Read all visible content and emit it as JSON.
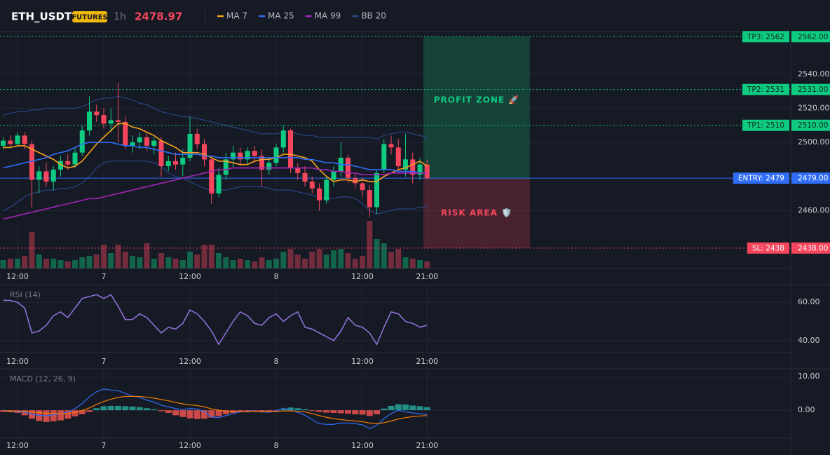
{
  "header": {
    "symbol": "ETH_USDT",
    "badge": "FUTURES",
    "interval": "1h",
    "price": "2478.97"
  },
  "chart_data": [
    {
      "type": "candlestick",
      "categories": [
        null,
        null,
        "12:00",
        null,
        null,
        null,
        null,
        null,
        null,
        null,
        null,
        null,
        null,
        null,
        "7",
        null,
        null,
        null,
        null,
        null,
        null,
        null,
        null,
        null,
        null,
        null,
        "12:00",
        null,
        null,
        null,
        null,
        null,
        null,
        null,
        null,
        null,
        null,
        null,
        "8",
        null,
        null,
        null,
        null,
        null,
        null,
        null,
        null,
        null,
        null,
        null,
        "12:00",
        null,
        null,
        null,
        null,
        null,
        null,
        null,
        null,
        "21:00"
      ],
      "open": [
        2498,
        2501,
        2499,
        2504,
        2499,
        2478,
        2483,
        2477,
        2484,
        2489,
        2487,
        2494,
        2507,
        2518,
        2516,
        2511,
        2513,
        2512,
        2498,
        2500,
        2503,
        2498,
        2501,
        2486,
        2489,
        2487,
        2491,
        2505,
        2499,
        2490,
        2470,
        2481,
        2490,
        2494,
        2490,
        2495,
        2492,
        2484,
        2488,
        2497,
        2507,
        2485,
        2482,
        2477,
        2473,
        2466,
        2478,
        2483,
        2491,
        2479,
        2476,
        2472,
        2462,
        2484,
        2499,
        2497,
        2484,
        2490,
        2481,
        2487
      ],
      "high": [
        2503,
        2504,
        2506,
        2506,
        2501,
        2486,
        2488,
        2486,
        2492,
        2493,
        2497,
        2510,
        2527,
        2522,
        2520,
        2520,
        2535,
        2515,
        2504,
        2506,
        2506,
        2503,
        2503,
        2492,
        2494,
        2496,
        2515,
        2508,
        2502,
        2492,
        2485,
        2494,
        2498,
        2497,
        2497,
        2498,
        2496,
        2491,
        2499,
        2510,
        2508,
        2488,
        2486,
        2480,
        2476,
        2480,
        2486,
        2500,
        2493,
        2482,
        2479,
        2475,
        2484,
        2502,
        2504,
        2502,
        2505,
        2494,
        2491,
        2490
      ],
      "low": [
        2496,
        2497,
        2498,
        2496,
        2462,
        2470,
        2474,
        2472,
        2480,
        2484,
        2485,
        2492,
        2504,
        2512,
        2508,
        2506,
        2500,
        2496,
        2494,
        2496,
        2495,
        2493,
        2480,
        2483,
        2484,
        2480,
        2489,
        2496,
        2486,
        2464,
        2468,
        2478,
        2485,
        2486,
        2487,
        2488,
        2474,
        2481,
        2486,
        2494,
        2482,
        2478,
        2474,
        2470,
        2460,
        2464,
        2474,
        2480,
        2476,
        2473,
        2468,
        2456,
        2458,
        2482,
        2493,
        2484,
        2480,
        2476,
        2478,
        2478
      ],
      "close": [
        2501,
        2499,
        2504,
        2499,
        2478,
        2483,
        2477,
        2484,
        2489,
        2487,
        2494,
        2507,
        2518,
        2516,
        2511,
        2513,
        2512,
        2498,
        2500,
        2503,
        2498,
        2501,
        2486,
        2489,
        2487,
        2491,
        2505,
        2499,
        2490,
        2470,
        2481,
        2490,
        2494,
        2490,
        2495,
        2492,
        2484,
        2488,
        2497,
        2507,
        2485,
        2482,
        2477,
        2473,
        2466,
        2478,
        2483,
        2491,
        2479,
        2476,
        2472,
        2462,
        2482,
        2499,
        2497,
        2486,
        2490,
        2481,
        2487,
        2479
      ],
      "volume": [
        12,
        14,
        14,
        18,
        52,
        20,
        14,
        14,
        12,
        10,
        12,
        16,
        18,
        20,
        34,
        22,
        34,
        24,
        18,
        16,
        36,
        14,
        22,
        16,
        14,
        12,
        24,
        20,
        34,
        34,
        22,
        16,
        12,
        14,
        12,
        10,
        16,
        12,
        14,
        24,
        28,
        20,
        14,
        24,
        28,
        20,
        26,
        28,
        22,
        14,
        18,
        68,
        42,
        36,
        24,
        28,
        16,
        14,
        12,
        10
      ],
      "up_color": "#0ecb81",
      "down_color": "#f6465d",
      "series": [
        {
          "name": "MA 7",
          "color": "#f7a21b",
          "values": [
            2497,
            2497,
            2498,
            2498,
            2496,
            2494,
            2492,
            2490,
            2487,
            2485,
            2486,
            2489,
            2494,
            2499,
            2503,
            2507,
            2511,
            2511,
            2509,
            2508,
            2506,
            2504,
            2501,
            2499,
            2497,
            2494,
            2494,
            2494,
            2493,
            2491,
            2489,
            2489,
            2488,
            2487,
            2487,
            2489,
            2490,
            2490,
            2491,
            2493,
            2493,
            2492,
            2491,
            2489,
            2484,
            2480,
            2477,
            2478,
            2478,
            2477,
            2478,
            2477,
            2477,
            2480,
            2482,
            2484,
            2485,
            2487,
            2489,
            2486
          ]
        },
        {
          "name": "MA 25",
          "color": "#2f6df6",
          "values": [
            2485,
            2486,
            2487,
            2488,
            2489,
            2490,
            2491,
            2493,
            2494,
            2495,
            2497,
            2499,
            2500,
            2500,
            2500,
            2500,
            2499,
            2498,
            2498,
            2497,
            2497,
            2496,
            2495,
            2494,
            2493,
            2493,
            2493,
            2493,
            2492,
            2492,
            2491,
            2491,
            2491,
            2491,
            2491,
            2491,
            2491,
            2491,
            2491,
            2491,
            2491,
            2491,
            2490,
            2490,
            2489,
            2488,
            2488,
            2487,
            2487,
            2486,
            2485,
            2484,
            2484,
            2484,
            2484,
            2483,
            2483,
            2483,
            2482,
            2482
          ]
        },
        {
          "name": "MA 99",
          "color": "#a425b8",
          "values": [
            2455,
            2456,
            2457,
            2458,
            2459,
            2460,
            2461,
            2462,
            2463,
            2464,
            2465,
            2466,
            2467,
            2467,
            2468,
            2469,
            2470,
            2471,
            2472,
            2473,
            2474,
            2475,
            2476,
            2477,
            2478,
            2479,
            2480,
            2481,
            2482,
            2483,
            2484,
            2484,
            2485,
            2485,
            2485,
            2485,
            2485,
            2485,
            2485,
            2485,
            2485,
            2485,
            2485,
            2485,
            2484,
            2484,
            2483,
            2483,
            2482,
            2482,
            2481,
            2481,
            2481,
            2481,
            2482,
            2482,
            2482,
            2482,
            2482,
            2482
          ]
        }
      ],
      "bands": {
        "name": "BB 20",
        "color": "#2a4384",
        "upper": [
          2516,
          2517,
          2518,
          2518,
          2519,
          2519,
          2520,
          2520,
          2520,
          2520,
          2520,
          2521,
          2523,
          2525,
          2526,
          2526,
          2527,
          2526,
          2525,
          2523,
          2522,
          2520,
          2518,
          2517,
          2516,
          2515,
          2515,
          2514,
          2513,
          2512,
          2511,
          2510,
          2509,
          2508,
          2507,
          2506,
          2505,
          2505,
          2505,
          2506,
          2506,
          2505,
          2504,
          2504,
          2503,
          2503,
          2503,
          2503,
          2503,
          2503,
          2503,
          2503,
          2502,
          2504,
          2505,
          2506,
          2506,
          2505,
          2504,
          2503
        ],
        "lower": [
          2460,
          2462,
          2465,
          2468,
          2470,
          2471,
          2472,
          2472,
          2473,
          2473,
          2474,
          2476,
          2480,
          2485,
          2488,
          2489,
          2489,
          2489,
          2489,
          2489,
          2489,
          2488,
          2486,
          2482,
          2480,
          2479,
          2477,
          2475,
          2473,
          2472,
          2472,
          2472,
          2473,
          2474,
          2474,
          2474,
          2474,
          2473,
          2472,
          2472,
          2472,
          2471,
          2470,
          2469,
          2468,
          2467,
          2467,
          2468,
          2468,
          2467,
          2464,
          2460,
          2458,
          2459,
          2460,
          2461,
          2461,
          2461,
          2462,
          2462
        ]
      },
      "levels": [
        {
          "label": "TP3: 2562",
          "value": 2562,
          "axis_label": "2562.00",
          "color": "#0ecb81",
          "text_color": "#10251c",
          "dashed": true
        },
        {
          "label": "TP2: 2531",
          "value": 2531,
          "axis_label": "2531.00",
          "color": "#0ecb81",
          "text_color": "#10251c",
          "dashed": true
        },
        {
          "label": "TP1: 2510",
          "value": 2510,
          "axis_label": "2510.00",
          "color": "#0ecb81",
          "text_color": "#10251c",
          "dashed": true
        },
        {
          "label": "ENTRY: 2479",
          "value": 2479,
          "axis_label": "2479.00",
          "color": "#2f6df6",
          "text_color": "#ffffff",
          "dashed": false
        },
        {
          "label": "SL: 2438",
          "value": 2438,
          "axis_label": "2438.00",
          "color": "#f6465d",
          "text_color": "#ffffff",
          "dashed": true
        }
      ],
      "zones": [
        {
          "label": "PROFIT ZONE 🚀",
          "from": 2479,
          "to": 2562,
          "color": "#0ecb81",
          "fill": "rgba(14,203,129,0.22)"
        },
        {
          "label": "RISK AREA 🛡️",
          "from": 2438,
          "to": 2479,
          "color": "#f6465d",
          "fill": "rgba(246,70,93,0.22)"
        }
      ],
      "ylim": [
        2426,
        2565
      ],
      "yticks": [
        {
          "value": 2540,
          "label": "2540.00"
        },
        {
          "value": 2520,
          "label": "2520.00"
        },
        {
          "value": 2500,
          "label": "2500.00"
        },
        {
          "value": 2460,
          "label": "2460.00"
        }
      ]
    },
    {
      "type": "line",
      "title": "RSI (14)",
      "color": "#8e6fd6",
      "categories": [
        null,
        null,
        "12:00",
        null,
        null,
        null,
        null,
        null,
        null,
        null,
        null,
        null,
        null,
        null,
        "7",
        null,
        null,
        null,
        null,
        null,
        null,
        null,
        null,
        null,
        null,
        null,
        "12:00",
        null,
        null,
        null,
        null,
        null,
        null,
        null,
        null,
        null,
        null,
        null,
        "8",
        null,
        null,
        null,
        null,
        null,
        null,
        null,
        null,
        null,
        null,
        null,
        "12:00",
        null,
        null,
        null,
        null,
        null,
        null,
        null,
        null,
        "21:00"
      ],
      "values": [
        61,
        61,
        60,
        57,
        44,
        45,
        48,
        53,
        55,
        52,
        57,
        62,
        63,
        64,
        62,
        64,
        58,
        51,
        51,
        54,
        52,
        48,
        44,
        47,
        46,
        49,
        56,
        54,
        50,
        45,
        38,
        44,
        50,
        55,
        53,
        49,
        48,
        52,
        54,
        50,
        53,
        55,
        47,
        46,
        44,
        42,
        40,
        45,
        52,
        48,
        47,
        44,
        38,
        47,
        55,
        54,
        50,
        49,
        47,
        48
      ],
      "ylim": [
        33.7,
        68.5
      ],
      "yticks": [
        {
          "value": 60,
          "label": "60.00"
        },
        {
          "value": 40,
          "label": "40.00"
        }
      ]
    },
    {
      "type": "macd",
      "title": "MACD (12, 26, 9)",
      "categories": [
        null,
        null,
        "12:00",
        null,
        null,
        null,
        null,
        null,
        null,
        null,
        null,
        null,
        null,
        null,
        "7",
        null,
        null,
        null,
        null,
        null,
        null,
        null,
        null,
        null,
        null,
        null,
        "12:00",
        null,
        null,
        null,
        null,
        null,
        null,
        null,
        null,
        null,
        null,
        null,
        "8",
        null,
        null,
        null,
        null,
        null,
        null,
        null,
        null,
        null,
        null,
        null,
        "12:00",
        null,
        null,
        null,
        null,
        null,
        null,
        null,
        null,
        "21:00"
      ],
      "histogram": [
        -0.5,
        -0.6,
        -0.8,
        -1.5,
        -2.5,
        -3.2,
        -3.5,
        -3.3,
        -3,
        -2.5,
        -1.8,
        -1.2,
        -0.5,
        0.6,
        1.2,
        1.3,
        1.3,
        1.2,
        1.1,
        0.9,
        0.6,
        0.3,
        -0.3,
        -0.8,
        -1.5,
        -2,
        -2.4,
        -2.6,
        -2.5,
        -2.2,
        -1.8,
        -1.2,
        -0.8,
        -0.5,
        -0.6,
        -0.5,
        -0.6,
        -0.5,
        -0.3,
        0.3,
        0.8,
        0.6,
        0.3,
        -0.2,
        -0.5,
        -0.7,
        -0.8,
        -0.9,
        -1,
        -1.2,
        -1.3,
        -1.7,
        -1.2,
        0.5,
        1.3,
        1.8,
        1.7,
        1.4,
        1.2,
        0.9
      ],
      "up_color": "#26a69a",
      "down_color": "#ef5350",
      "series": [
        {
          "color": "#2f6df6",
          "values": [
            0,
            -0.3,
            -0.5,
            -0.5,
            -1.2,
            -1.5,
            -1.6,
            -1.4,
            -1,
            -0.6,
            0.5,
            2,
            4,
            5.5,
            6.3,
            6,
            5.8,
            5,
            4.2,
            3.8,
            3,
            2.4,
            1.5,
            1,
            0.5,
            0.2,
            0.5,
            0.4,
            -0.4,
            -2,
            -2.2,
            -1.6,
            -1,
            -0.5,
            -0.3,
            -0.2,
            -0.5,
            -0.6,
            -0.2,
            0.6,
            0,
            -0.6,
            -1.5,
            -2.8,
            -4,
            -4.2,
            -4.2,
            -3.8,
            -3.8,
            -4,
            -4.3,
            -5.5,
            -4.5,
            -2.5,
            -1,
            0,
            -0.5,
            -0.8,
            -1,
            -1.3
          ]
        },
        {
          "color": "#f57c00",
          "values": [
            -0.2,
            -0.2,
            -0.3,
            -0.3,
            -0.5,
            -0.7,
            -0.9,
            -1,
            -1,
            -0.9,
            -0.6,
            -0.1,
            0.7,
            1.7,
            2.6,
            3.3,
            3.8,
            4.1,
            4.1,
            4.1,
            3.9,
            3.6,
            3.2,
            2.8,
            2.3,
            1.9,
            1.6,
            1.4,
            1,
            0.4,
            0,
            -0.3,
            -0.4,
            -0.4,
            -0.4,
            -0.3,
            -0.4,
            -0.4,
            -0.4,
            -0.2,
            -0.2,
            -0.3,
            -0.5,
            -1,
            -1.6,
            -2.1,
            -2.5,
            -2.8,
            -3,
            -3.2,
            -3.4,
            -3.8,
            -4,
            -3.7,
            -3.2,
            -2.6,
            -2.2,
            -1.9,
            -1.7,
            -1.6
          ]
        }
      ],
      "ylim": [
        -8.3,
        11.9
      ],
      "yticks": [
        {
          "value": 10,
          "label": "10.00"
        },
        {
          "value": 0,
          "label": "0.00"
        }
      ]
    }
  ]
}
